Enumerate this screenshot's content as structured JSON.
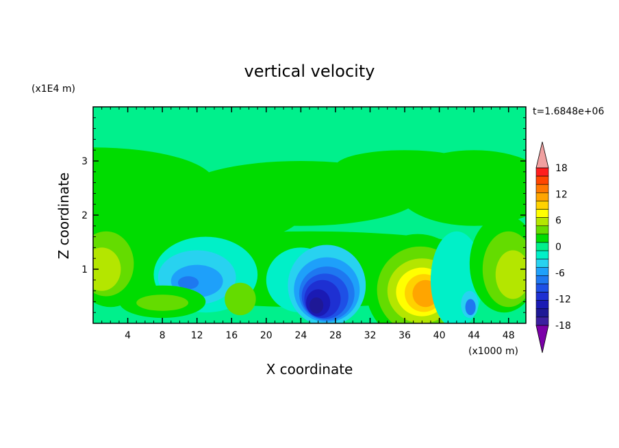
{
  "chart_data": {
    "type": "heatmap",
    "title": "vertical velocity",
    "xlabel": "X coordinate",
    "ylabel": "Z coordinate",
    "x_units": "(x1000 m)",
    "y_units": "(x1E4 m)",
    "time_label": "t=1.6848e+06",
    "xlim": [
      0,
      50
    ],
    "ylim": [
      0,
      4
    ],
    "x_ticks": [
      "4",
      "8",
      "12",
      "16",
      "20",
      "24",
      "28",
      "32",
      "36",
      "40",
      "44",
      "48"
    ],
    "y_ticks": [
      "1",
      "2",
      "3"
    ],
    "background_value": 0,
    "regions": [
      {
        "x": 0,
        "y": 2.6,
        "rx": 14,
        "ry": 0.65,
        "value": 2
      },
      {
        "x": 10,
        "y": 2.0,
        "rx": 14,
        "ry": 0.6,
        "value": 2
      },
      {
        "x": 24,
        "y": 2.4,
        "rx": 14,
        "ry": 0.6,
        "value": 2
      },
      {
        "x": 44,
        "y": 2.5,
        "rx": 9,
        "ry": 0.7,
        "value": 2
      },
      {
        "x": 36,
        "y": 2.9,
        "rx": 8,
        "ry": 0.3,
        "value": 2
      },
      {
        "x": 25,
        "y": 1.0,
        "rx": 25,
        "ry": 0.7,
        "value": 2
      },
      {
        "x": 13,
        "y": 0.9,
        "rx": 6,
        "ry": 0.7,
        "value": -2
      },
      {
        "x": 12,
        "y": 0.85,
        "rx": 4.5,
        "ry": 0.5,
        "value": -4
      },
      {
        "x": 12,
        "y": 0.78,
        "rx": 3,
        "ry": 0.3,
        "value": -6
      },
      {
        "x": 11,
        "y": 0.75,
        "rx": 1.2,
        "ry": 0.12,
        "value": -8
      },
      {
        "x": 2,
        "y": 1.2,
        "rx": 4.5,
        "ry": 0.9,
        "value": 2
      },
      {
        "x": 1.5,
        "y": 1.1,
        "rx": 3.2,
        "ry": 0.6,
        "value": 4
      },
      {
        "x": 1,
        "y": 1.0,
        "rx": 2.2,
        "ry": 0.4,
        "value": 6
      },
      {
        "x": 8,
        "y": 0.4,
        "rx": 5,
        "ry": 0.3,
        "value": 2
      },
      {
        "x": 8,
        "y": 0.38,
        "rx": 3,
        "ry": 0.15,
        "value": 4
      },
      {
        "x": 17,
        "y": 0.45,
        "rx": 1.8,
        "ry": 0.3,
        "value": 4
      },
      {
        "x": 24,
        "y": 0.8,
        "rx": 4,
        "ry": 0.6,
        "value": -2
      },
      {
        "x": 27,
        "y": 0.7,
        "rx": 4.5,
        "ry": 0.75,
        "value": -4
      },
      {
        "x": 27,
        "y": 0.62,
        "rx": 3.8,
        "ry": 0.6,
        "value": -6
      },
      {
        "x": 27,
        "y": 0.55,
        "rx": 3.2,
        "ry": 0.5,
        "value": -8
      },
      {
        "x": 26.8,
        "y": 0.5,
        "rx": 2.7,
        "ry": 0.42,
        "value": -10
      },
      {
        "x": 26.5,
        "y": 0.45,
        "rx": 2.1,
        "ry": 0.35,
        "value": -12
      },
      {
        "x": 26,
        "y": 0.38,
        "rx": 1.4,
        "ry": 0.25,
        "value": -14
      },
      {
        "x": 25.8,
        "y": 0.33,
        "rx": 0.8,
        "ry": 0.15,
        "value": -16
      },
      {
        "x": 37.5,
        "y": 0.65,
        "rx": 6,
        "ry": 1.0,
        "value": 2
      },
      {
        "x": 37.8,
        "y": 0.62,
        "rx": 5,
        "ry": 0.8,
        "value": 4
      },
      {
        "x": 38,
        "y": 0.6,
        "rx": 4,
        "ry": 0.6,
        "value": 6
      },
      {
        "x": 38,
        "y": 0.58,
        "rx": 3,
        "ry": 0.45,
        "value": 8
      },
      {
        "x": 38.2,
        "y": 0.56,
        "rx": 2.2,
        "ry": 0.35,
        "value": 10
      },
      {
        "x": 38.4,
        "y": 0.55,
        "rx": 1.5,
        "ry": 0.25,
        "value": 12
      },
      {
        "x": 42,
        "y": 0.8,
        "rx": 3,
        "ry": 0.9,
        "value": -2
      },
      {
        "x": 43.5,
        "y": 0.35,
        "rx": 1,
        "ry": 0.25,
        "value": -4
      },
      {
        "x": 43.6,
        "y": 0.3,
        "rx": 0.6,
        "ry": 0.15,
        "value": -8
      },
      {
        "x": 47.5,
        "y": 1.1,
        "rx": 4,
        "ry": 0.9,
        "value": 2
      },
      {
        "x": 48,
        "y": 1.0,
        "rx": 3,
        "ry": 0.7,
        "value": 4
      },
      {
        "x": 48.5,
        "y": 0.9,
        "rx": 2,
        "ry": 0.45,
        "value": 6
      }
    ],
    "colorbar": {
      "labels": [
        "18",
        "12",
        "6",
        "0",
        "-6",
        "-12",
        "-18"
      ],
      "levels": [
        -20,
        -18,
        -16,
        -14,
        -12,
        -10,
        -8,
        -6,
        -4,
        -2,
        0,
        2,
        4,
        6,
        8,
        10,
        12,
        14,
        16,
        18,
        20
      ],
      "colors": [
        "#7b00a8",
        "#3c1fa0",
        "#1e1896",
        "#1a1ab4",
        "#1e30d2",
        "#1e50e6",
        "#1e78f0",
        "#1ea0fa",
        "#28d2f0",
        "#00f0c8",
        "#00f08c",
        "#00dc00",
        "#64dc00",
        "#b4e600",
        "#ffff00",
        "#ffd200",
        "#ffa500",
        "#ff7800",
        "#ff4600",
        "#ff1e1e",
        "#f0a0a0"
      ]
    }
  }
}
